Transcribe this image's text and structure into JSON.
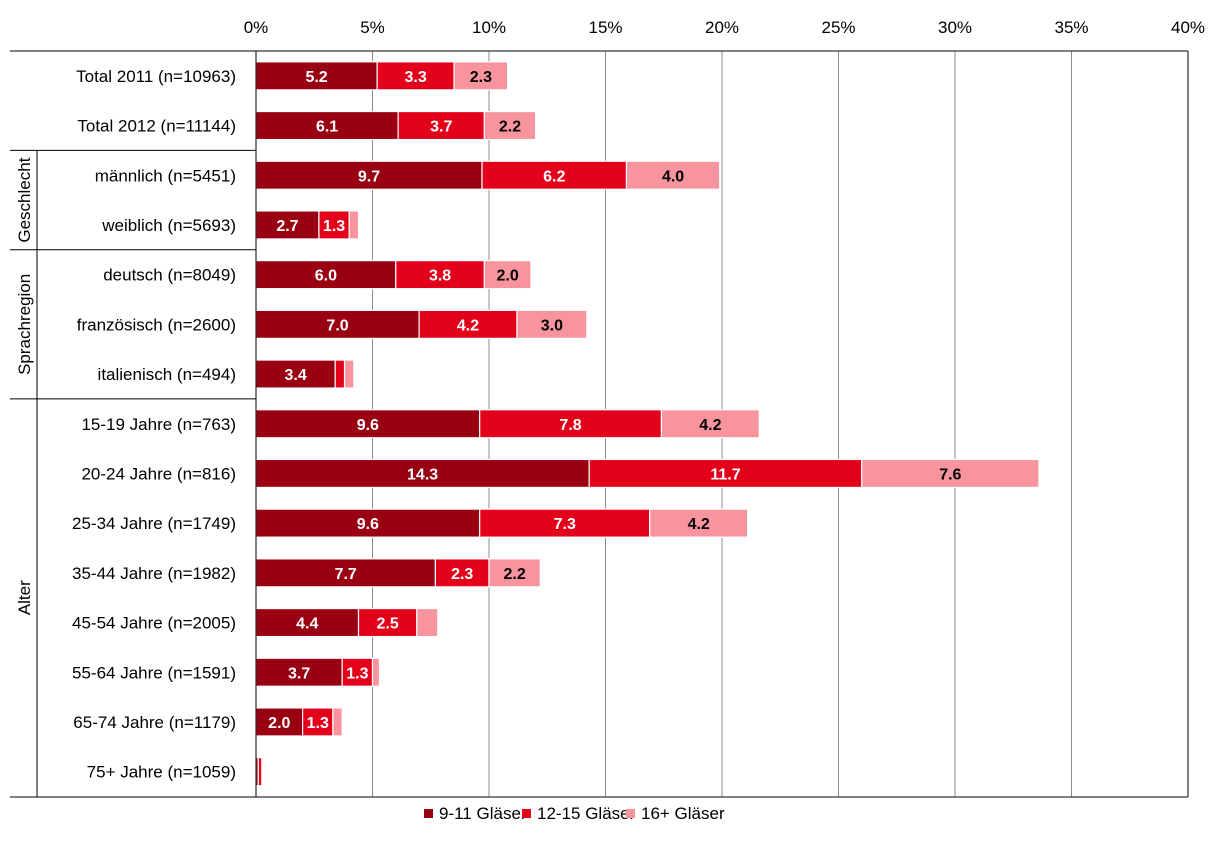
{
  "chart_data": {
    "type": "bar",
    "orientation": "horizontal",
    "stacked": true,
    "xlim": [
      0,
      40
    ],
    "x_ticks": [
      "0%",
      "5%",
      "10%",
      "15%",
      "20%",
      "25%",
      "30%",
      "35%",
      "40%"
    ],
    "grid": "vertical",
    "legend_position": "bottom",
    "categories": [
      "Total 2011 (n=10963)",
      "Total 2012 (n=11144)",
      "männlich (n=5451)",
      "weiblich (n=5693)",
      "deutsch (n=8049)",
      "französisch (n=2600)",
      "italienisch (n=494)",
      "15-19 Jahre (n=763)",
      "20-24 Jahre (n=816)",
      "25-34 Jahre (n=1749)",
      "35-44 Jahre (n=1982)",
      "45-54 Jahre (n=2005)",
      "55-64 Jahre (n=1591)",
      "65-74 Jahre (n=1179)",
      "75+ Jahre (n=1059)"
    ],
    "groups": [
      {
        "label": "Geschlecht",
        "start": 2,
        "end": 3
      },
      {
        "label": "Sprachregion",
        "start": 4,
        "end": 6
      },
      {
        "label": "Alter",
        "start": 7,
        "end": 14
      }
    ],
    "series": [
      {
        "name": "9-11 Gläser",
        "color": "#990011",
        "values": [
          5.2,
          6.1,
          9.7,
          2.7,
          6.0,
          7.0,
          3.4,
          9.6,
          14.3,
          9.6,
          7.7,
          4.4,
          3.7,
          2.0,
          0.1
        ],
        "labels": [
          "5.2",
          "6.1",
          "9.7",
          "2.7",
          "6.0",
          "7.0",
          "3.4",
          "9.6",
          "14.3",
          "9.6",
          "7.7",
          "4.4",
          "3.7",
          "2.0",
          ""
        ]
      },
      {
        "name": "12-15 Gläser",
        "color": "#E2001A",
        "values": [
          3.3,
          3.7,
          6.2,
          1.3,
          3.8,
          4.2,
          0.4,
          7.8,
          11.7,
          7.3,
          2.3,
          2.5,
          1.3,
          1.3,
          0.15
        ],
        "labels": [
          "3.3",
          "3.7",
          "6.2",
          "1.3",
          "3.8",
          "4.2",
          "",
          "7.8",
          "11.7",
          "7.3",
          "2.3",
          "2.5",
          "1.3",
          "1.3",
          ""
        ]
      },
      {
        "name": "16+ Gläser",
        "color": "#F7949D",
        "values": [
          2.3,
          2.2,
          4.0,
          0.4,
          2.0,
          3.0,
          0.4,
          4.2,
          7.6,
          4.2,
          2.2,
          0.9,
          0.3,
          0.4,
          0.0
        ],
        "labels": [
          "2.3",
          "2.2",
          "4.0",
          "",
          "2.0",
          "3.0",
          "",
          "4.2",
          "7.6",
          "4.2",
          "2.2",
          "",
          "",
          "",
          ""
        ]
      }
    ]
  }
}
